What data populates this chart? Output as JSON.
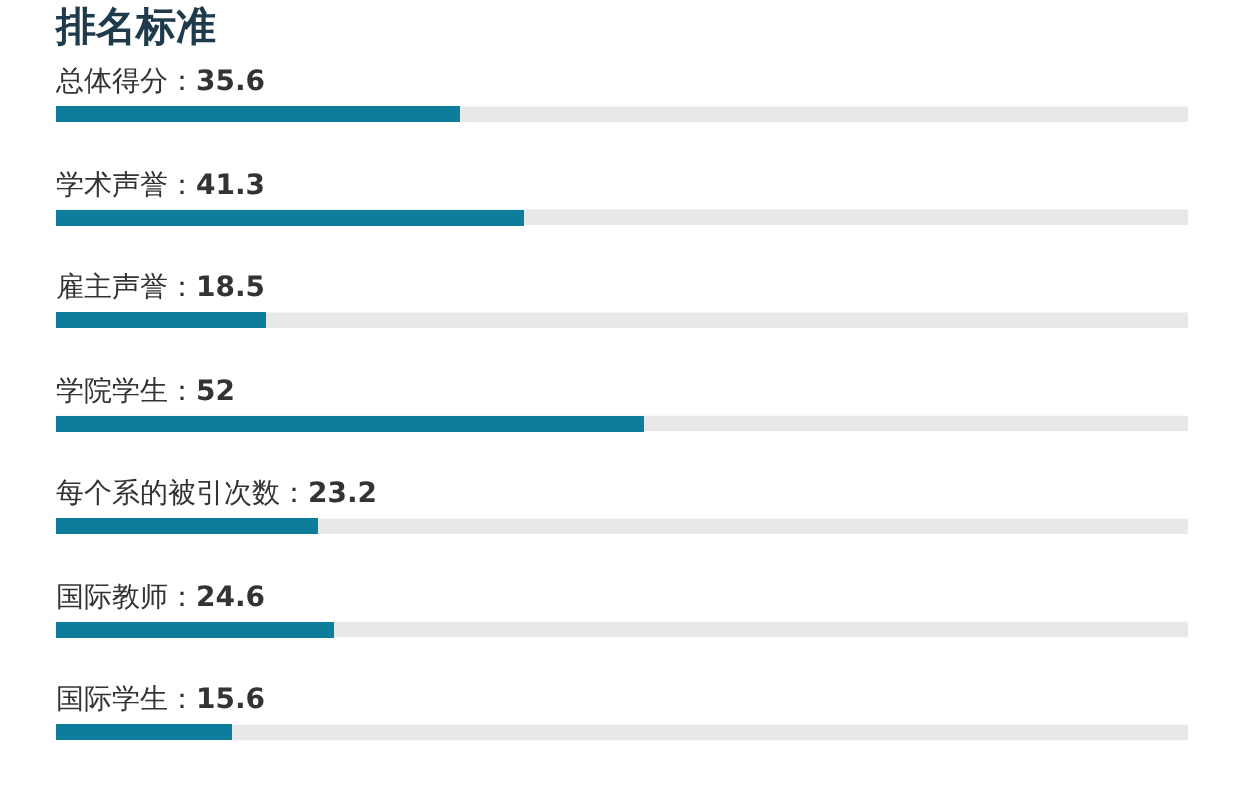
{
  "chart_data": {
    "type": "bar",
    "orientation": "horizontal",
    "title": "排名标准",
    "categories": [
      "总体得分",
      "学术声誉",
      "雇主声誉",
      "学院学生",
      "每个系的被引次数",
      "国际教师",
      "国际学生"
    ],
    "values": [
      35.6,
      41.3,
      18.5,
      52,
      23.2,
      24.6,
      15.6
    ],
    "value_labels": [
      "：35.6",
      "：41.3",
      "：18.5",
      "：52",
      "：23.2",
      "：24.6",
      "：15.6"
    ],
    "color": "#0e7c9b",
    "xlim": [
      0,
      100
    ],
    "grid": false,
    "legend": false
  }
}
